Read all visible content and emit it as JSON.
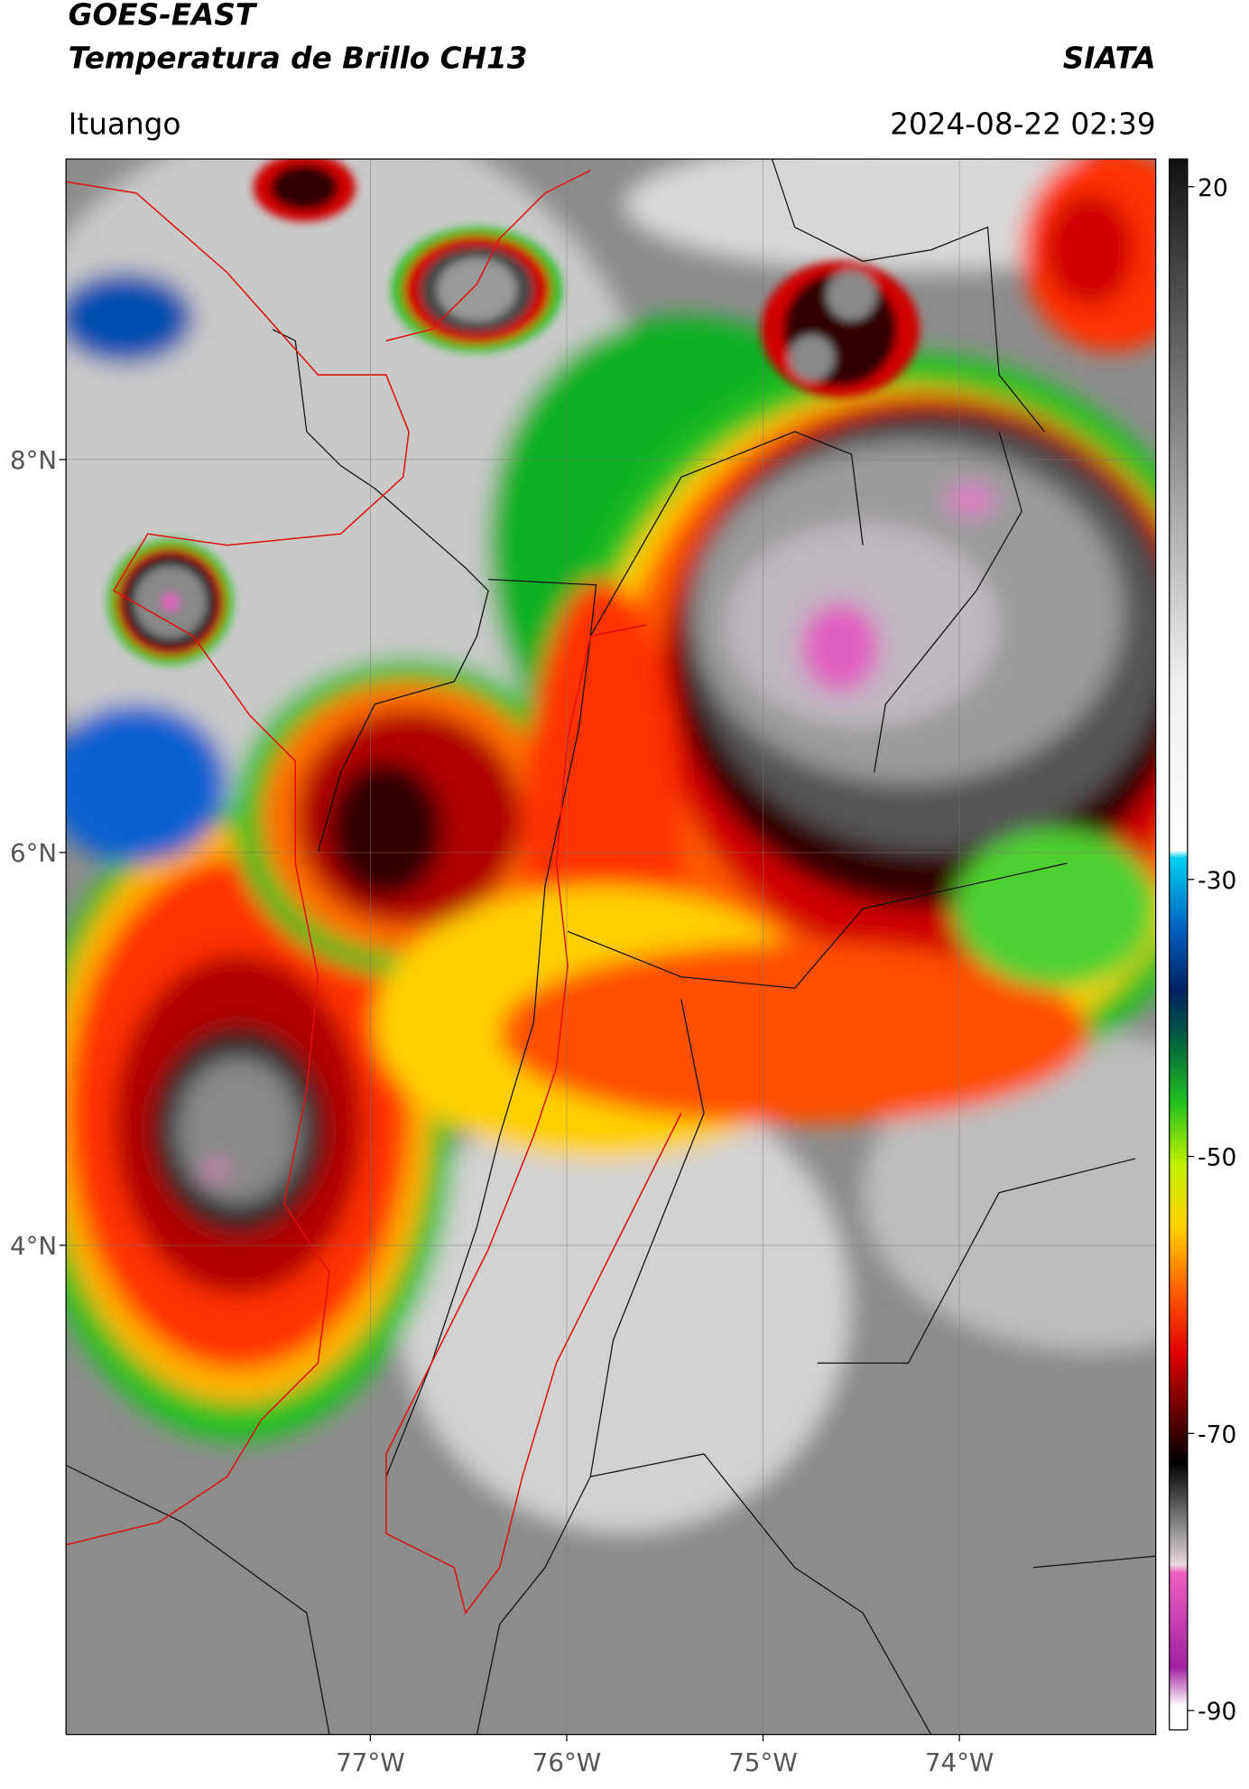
{
  "header": {
    "title": "GOES-EAST",
    "subtitle": "Temperatura de Brillo CH13",
    "brand": "SIATA",
    "location": "Ituango",
    "datetime": "2024-08-22 02:39"
  },
  "map": {
    "xlim": [
      -78.55,
      -73.0
    ],
    "ylim": [
      1.51,
      9.53
    ],
    "xticks": [
      {
        "value": -77,
        "label": "77°W"
      },
      {
        "value": -76,
        "label": "76°W"
      },
      {
        "value": -75,
        "label": "75°W"
      },
      {
        "value": -74,
        "label": "74°W"
      }
    ],
    "yticks": [
      {
        "value": 8,
        "label": "8°N"
      },
      {
        "value": 6,
        "label": "6°N"
      },
      {
        "value": 4,
        "label": "4°N"
      }
    ]
  },
  "colorbar": {
    "lim": [
      -91.4,
      22
    ],
    "ticks": [
      20,
      -30,
      -50,
      -70,
      -90
    ]
  }
}
